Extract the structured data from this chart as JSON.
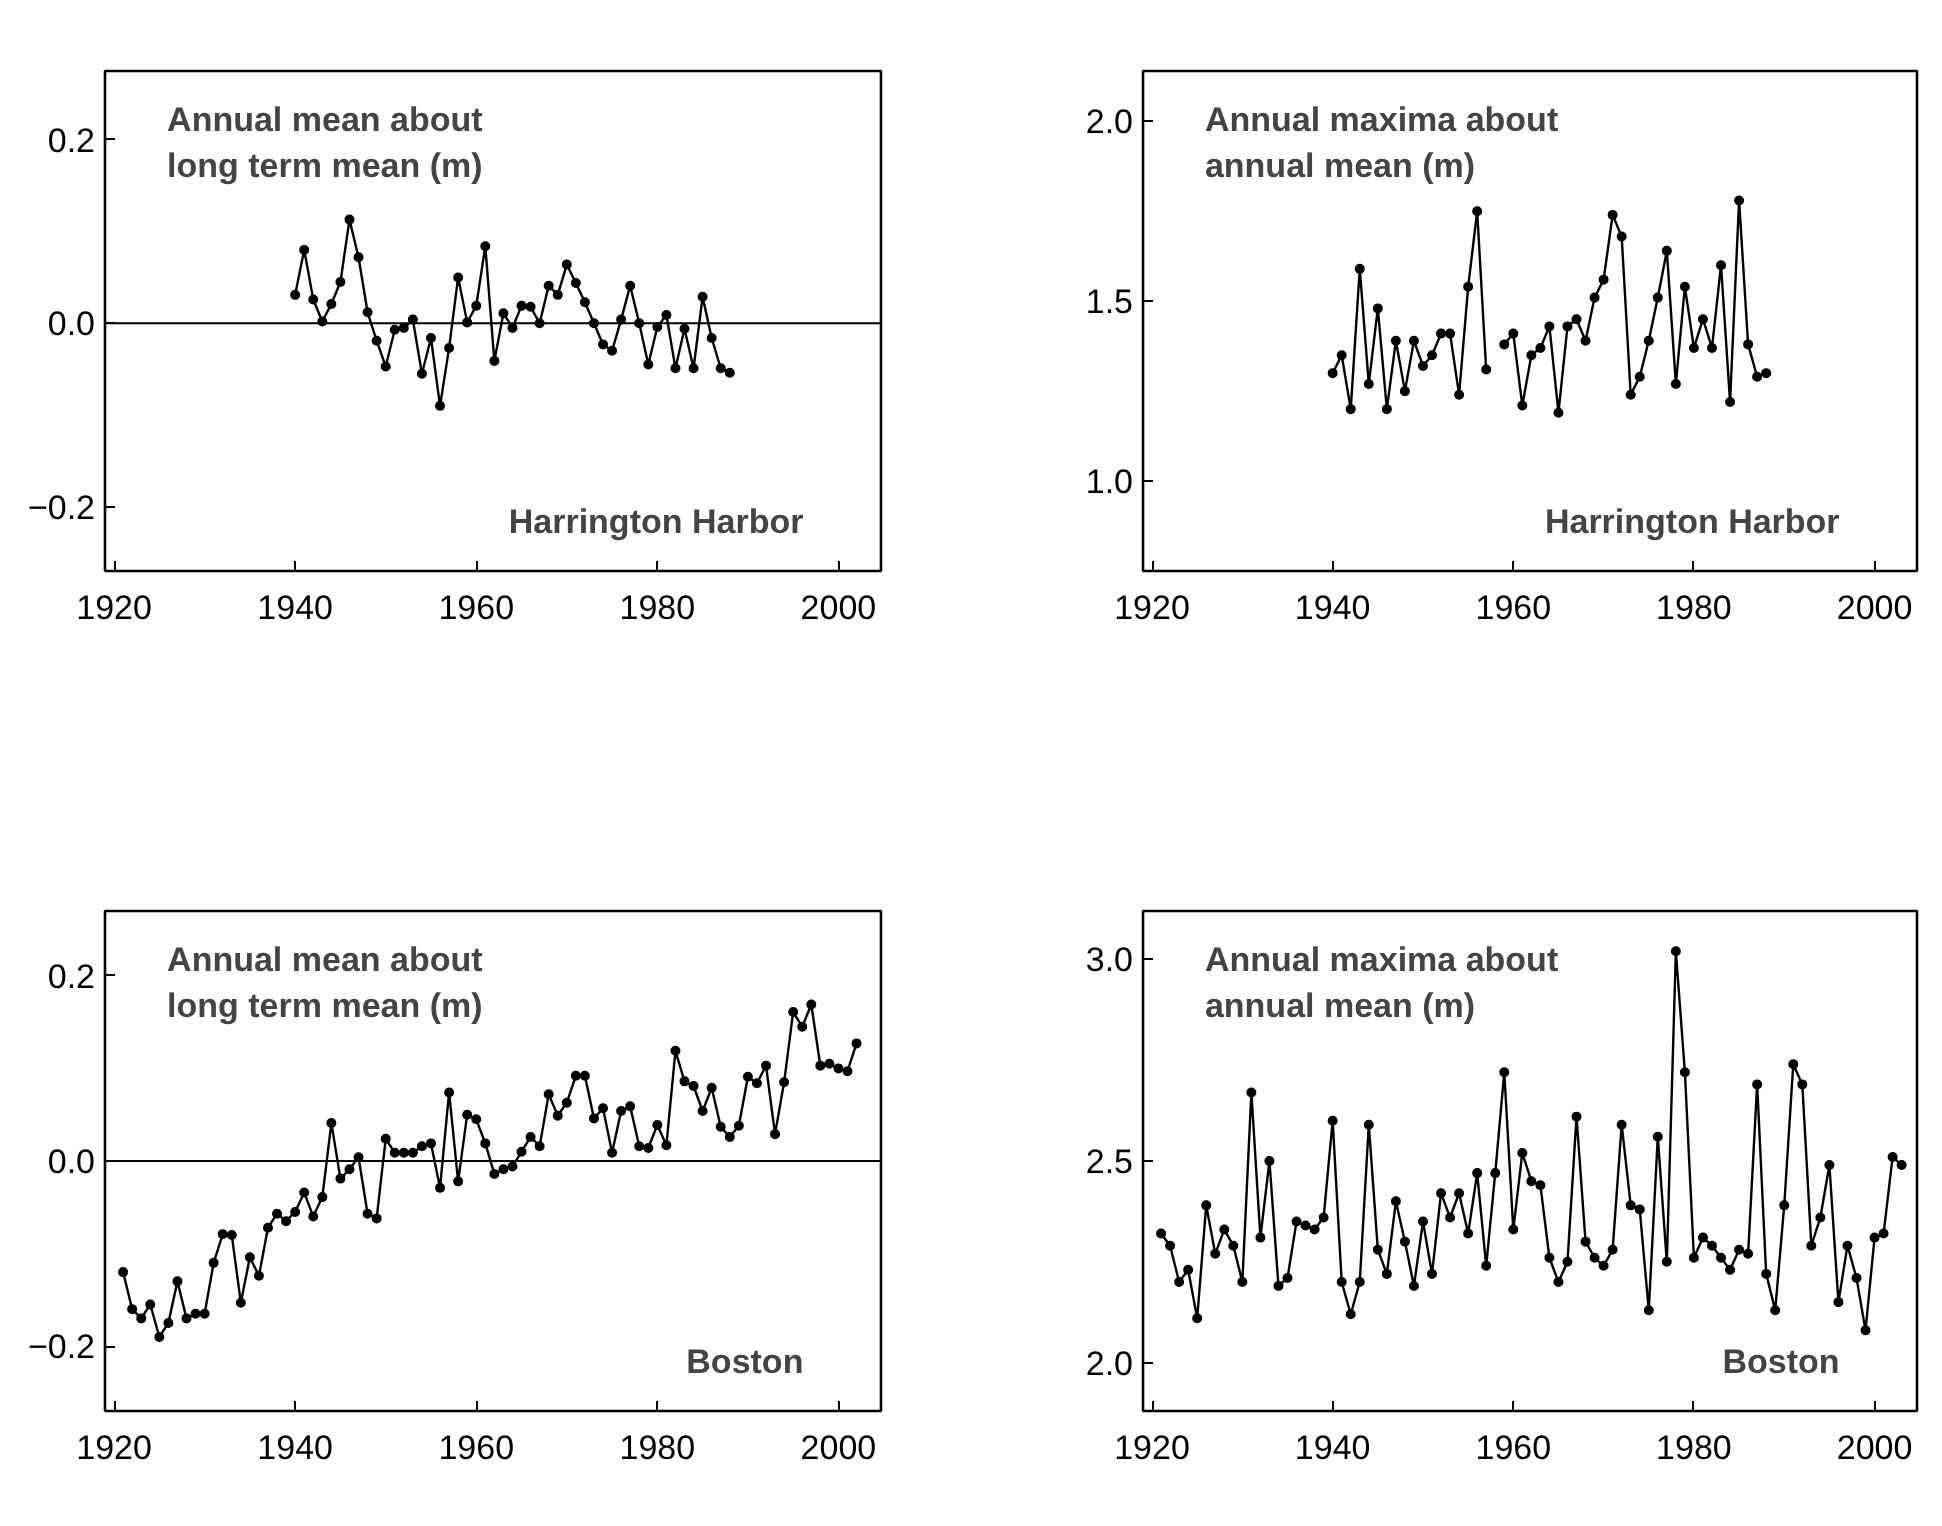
{
  "chart_data": [
    {
      "type": "line",
      "title": "Annual mean about\nlong term mean (m)",
      "annotations": [
        "Harrington Harbor"
      ],
      "marker": "circle",
      "grid": false,
      "xlim": [
        1919,
        2004.7
      ],
      "ylim": [
        -0.27,
        0.275
      ],
      "xticks": [
        1920,
        1940,
        1960,
        1980,
        2000
      ],
      "yticks": [
        {
          "value": -0.2,
          "label": "−0.2"
        },
        {
          "value": 0,
          "label": "0.0"
        },
        {
          "value": 0.2,
          "label": "0.2"
        }
      ],
      "ref_lines": [
        {
          "axis": "y",
          "value": 0,
          "color": "#000000"
        }
      ],
      "series": [
        {
          "color": "#000000",
          "x": [
            1940,
            1941,
            1942,
            1943,
            1944,
            1945,
            1946,
            1947,
            1948,
            1949,
            1950,
            1951,
            1952,
            1953,
            1954,
            1955,
            1956,
            1957,
            1958,
            1959,
            1960,
            1961,
            1962,
            1963,
            1964,
            1965,
            1966,
            1967,
            1968,
            1969,
            1970,
            1971,
            1972,
            1973,
            1974,
            1975,
            1976,
            1977,
            1978,
            1979,
            1980,
            1981,
            1982,
            1983,
            1984,
            1985,
            1986,
            1987,
            1988
          ],
          "values": [
            0.031,
            0.08,
            0.026,
            0.002,
            0.021,
            0.045,
            0.113,
            0.072,
            0.012,
            -0.019,
            -0.047,
            -0.007,
            -0.005,
            0.004,
            -0.055,
            -0.016,
            -0.09,
            -0.027,
            0.05,
            0.001,
            0.019,
            0.084,
            -0.041,
            0.011,
            -0.005,
            0.019,
            0.018,
            0.0,
            0.041,
            0.031,
            0.064,
            0.044,
            0.023,
            0.0,
            -0.023,
            -0.03,
            0.004,
            0.041,
            0.0,
            -0.045,
            -0.004,
            0.009,
            -0.049,
            -0.006,
            -0.049,
            0.029,
            -0.016,
            -0.049,
            -0.054
          ]
        }
      ]
    },
    {
      "type": "line",
      "title": "Annual maxima about\nannual mean (m)",
      "annotations": [
        "Harrington Harbor"
      ],
      "marker": "circle",
      "grid": false,
      "xlim": [
        1919,
        2004.7
      ],
      "ylim": [
        0.75,
        2.14
      ],
      "xticks": [
        1920,
        1940,
        1960,
        1980,
        2000
      ],
      "yticks": [
        {
          "value": 1,
          "label": "1.0"
        },
        {
          "value": 1.5,
          "label": "1.5"
        },
        {
          "value": 2,
          "label": "2.0"
        }
      ],
      "series": [
        {
          "color": "#000000",
          "x": [
            1940,
            1941,
            1942,
            1943,
            1944,
            1945,
            1946,
            1947,
            1948,
            1949,
            1950,
            1951,
            1952,
            1953,
            1954,
            1955,
            1956,
            1957,
            1958,
            1959,
            1960,
            1961,
            1962,
            1963,
            1964,
            1965,
            1966,
            1967,
            1968,
            1969,
            1970,
            1971,
            1972,
            1973,
            1974,
            1975,
            1976,
            1977,
            1978,
            1979,
            1980,
            1981,
            1982,
            1983,
            1984,
            1985,
            1986,
            1987,
            1988
          ],
          "values": [
            1.3,
            1.35,
            1.2,
            1.59,
            1.27,
            1.48,
            1.2,
            1.39,
            1.25,
            1.39,
            1.32,
            1.35,
            1.41,
            1.41,
            1.24,
            1.54,
            1.75,
            1.31,
            null,
            1.38,
            1.41,
            1.21,
            1.35,
            1.37,
            1.43,
            1.19,
            1.43,
            1.45,
            1.39,
            1.51,
            1.56,
            1.74,
            1.68,
            1.24,
            1.29,
            1.39,
            1.51,
            1.64,
            1.27,
            1.54,
            1.37,
            1.45,
            1.37,
            1.6,
            1.22,
            1.78,
            1.38,
            1.29,
            1.3
          ]
        }
      ]
    },
    {
      "type": "line",
      "title": "Annual mean about\nlong term mean (m)",
      "annotations": [
        "Boston"
      ],
      "marker": "circle",
      "grid": false,
      "xlim": [
        1919,
        2004.7
      ],
      "ylim": [
        -0.27,
        0.27
      ],
      "xticks": [
        1920,
        1940,
        1960,
        1980,
        2000
      ],
      "yticks": [
        {
          "value": -0.2,
          "label": "−0.2"
        },
        {
          "value": 0,
          "label": "0.0"
        },
        {
          "value": 0.2,
          "label": "0.2"
        }
      ],
      "ref_lines": [
        {
          "axis": "y",
          "value": 0,
          "color": "#000000"
        }
      ],
      "series": [
        {
          "color": "#000000",
          "x": [
            1921,
            1922,
            1923,
            1924,
            1925,
            1926,
            1927,
            1928,
            1929,
            1930,
            1931,
            1932,
            1933,
            1934,
            1935,
            1936,
            1937,
            1938,
            1939,
            1940,
            1941,
            1942,
            1943,
            1944,
            1945,
            1946,
            1947,
            1948,
            1949,
            1950,
            1951,
            1952,
            1953,
            1954,
            1955,
            1956,
            1957,
            1958,
            1959,
            1960,
            1961,
            1962,
            1963,
            1964,
            1965,
            1966,
            1967,
            1968,
            1969,
            1970,
            1971,
            1972,
            1973,
            1974,
            1975,
            1976,
            1977,
            1978,
            1979,
            1980,
            1981,
            1982,
            1983,
            1984,
            1985,
            1986,
            1987,
            1988,
            1989,
            1990,
            1991,
            1992,
            1993,
            1994,
            1995,
            1996,
            1997,
            1998,
            1999,
            2000,
            2001,
            2002
          ],
          "values": [
            -0.12,
            -0.16,
            -0.17,
            -0.155,
            -0.19,
            -0.175,
            -0.13,
            -0.17,
            -0.165,
            -0.165,
            -0.11,
            -0.079,
            -0.08,
            -0.153,
            -0.104,
            -0.124,
            -0.072,
            -0.057,
            -0.065,
            -0.055,
            -0.034,
            -0.06,
            -0.039,
            0.041,
            -0.019,
            -0.009,
            0.004,
            -0.057,
            -0.062,
            0.024,
            0.009,
            0.009,
            0.009,
            0.016,
            0.019,
            -0.029,
            0.074,
            -0.022,
            0.05,
            0.045,
            0.019,
            -0.014,
            -0.009,
            -0.006,
            0.01,
            0.026,
            0.016,
            0.072,
            0.049,
            0.063,
            0.092,
            0.092,
            0.046,
            0.057,
            0.009,
            0.054,
            0.059,
            0.016,
            0.014,
            0.039,
            0.017,
            0.119,
            0.086,
            0.081,
            0.054,
            0.079,
            0.037,
            0.026,
            0.038,
            0.091,
            0.084,
            0.103,
            0.029,
            0.085,
            0.161,
            0.145,
            0.169,
            0.103,
            0.105,
            0.1,
            0.097,
            0.127
          ]
        }
      ]
    },
    {
      "type": "line",
      "title": "Annual maxima about\nannual mean (m)",
      "annotations": [
        "Boston"
      ],
      "marker": "circle",
      "grid": false,
      "xlim": [
        1919,
        2004.7
      ],
      "ylim": [
        1.88,
        3.12
      ],
      "xticks": [
        1920,
        1940,
        1960,
        1980,
        2000
      ],
      "yticks": [
        {
          "value": 2,
          "label": "2.0"
        },
        {
          "value": 2.5,
          "label": "2.5"
        },
        {
          "value": 3,
          "label": "3.0"
        }
      ],
      "series": [
        {
          "color": "#000000",
          "x": [
            1921,
            1922,
            1923,
            1924,
            1925,
            1926,
            1927,
            1928,
            1929,
            1930,
            1931,
            1932,
            1933,
            1934,
            1935,
            1936,
            1937,
            1938,
            1939,
            1940,
            1941,
            1942,
            1943,
            1944,
            1945,
            1946,
            1947,
            1948,
            1949,
            1950,
            1951,
            1952,
            1953,
            1954,
            1955,
            1956,
            1957,
            1958,
            1959,
            1960,
            1961,
            1962,
            1963,
            1964,
            1965,
            1966,
            1967,
            1968,
            1969,
            1970,
            1971,
            1972,
            1973,
            1974,
            1975,
            1976,
            1977,
            1978,
            1979,
            1980,
            1981,
            1982,
            1983,
            1984,
            1985,
            1986,
            1987,
            1988,
            1989,
            1990,
            1991,
            1992,
            1993,
            1994,
            1995,
            1996,
            1997,
            1998,
            1999,
            2000,
            2001,
            2002,
            2003
          ],
          "values": [
            2.32,
            2.29,
            2.2,
            2.23,
            2.11,
            2.39,
            2.27,
            2.33,
            2.29,
            2.2,
            2.67,
            2.31,
            2.5,
            2.19,
            2.21,
            2.35,
            2.34,
            2.33,
            2.36,
            2.6,
            2.2,
            2.12,
            2.2,
            2.59,
            2.28,
            2.22,
            2.4,
            2.3,
            2.19,
            2.35,
            2.22,
            2.42,
            2.36,
            2.42,
            2.32,
            2.47,
            2.24,
            2.47,
            2.72,
            2.33,
            2.52,
            2.45,
            2.44,
            2.26,
            2.2,
            2.25,
            2.61,
            2.3,
            2.26,
            2.24,
            2.28,
            2.59,
            2.39,
            2.38,
            2.13,
            2.56,
            2.25,
            3.02,
            2.72,
            2.26,
            2.31,
            2.29,
            2.26,
            2.23,
            2.28,
            2.27,
            2.69,
            2.22,
            2.13,
            2.39,
            2.74,
            2.69,
            2.29,
            2.36,
            2.49,
            2.15,
            2.29,
            2.21,
            2.08,
            2.31,
            2.32,
            2.51,
            2.49
          ]
        }
      ]
    }
  ]
}
